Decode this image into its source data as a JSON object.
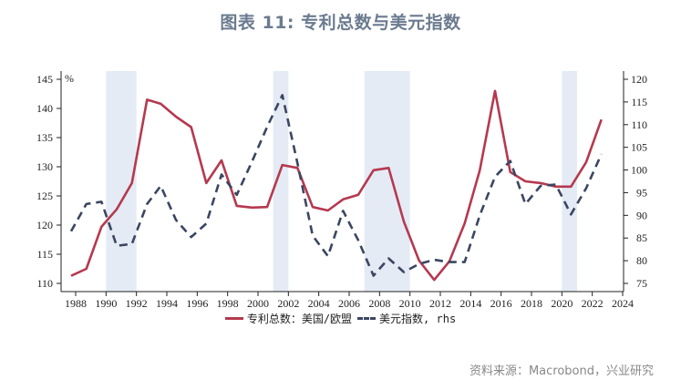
{
  "title": "图表 11: 专利总数与美元指数",
  "source": "资料来源：Macrobond，兴业研究",
  "colors": {
    "patent_line": "#b5394f",
    "usd_line": "#3b4661",
    "shade": "#e4ebf5",
    "title": "#6b7b8f"
  },
  "legend": {
    "patent": "专利总数：美国/欧盟",
    "usd": "美元指数, rhs"
  },
  "chart_data": {
    "type": "line",
    "title": "图表 11: 专利总数与美元指数",
    "xlabel": "",
    "ylabel": "%",
    "y2label": "rhs",
    "xlim": [
      1987,
      2024
    ],
    "ylim": [
      109,
      146
    ],
    "y2lim": [
      74,
      121
    ],
    "x_ticks": [
      1988,
      1990,
      1992,
      1994,
      1996,
      1998,
      2000,
      2002,
      2004,
      2006,
      2008,
      2010,
      2012,
      2014,
      2016,
      2018,
      2020,
      2022,
      2024
    ],
    "y_ticks": [
      110,
      115,
      120,
      125,
      130,
      135,
      140,
      145
    ],
    "y2_ticks": [
      75,
      80,
      85,
      90,
      95,
      100,
      105,
      110,
      115,
      120
    ],
    "legend_position": "bottom",
    "grid": false,
    "shaded_periods": [
      [
        1990.0,
        1992.0
      ],
      [
        2001.0,
        2002.0
      ],
      [
        2007.0,
        2010.0
      ],
      [
        2020.0,
        2021.0
      ]
    ],
    "series": [
      {
        "name": "专利总数：美国/欧盟",
        "axis": "left",
        "style": "solid",
        "x": [
          1987.7,
          1988.7,
          1989.7,
          1990.7,
          1991.7,
          1992.7,
          1993.6,
          1994.6,
          1995.6,
          1996.6,
          1997.6,
          1998.6,
          1999.6,
          2000.6,
          2001.6,
          2002.6,
          2003.6,
          2004.6,
          2005.6,
          2006.6,
          2007.6,
          2008.6,
          2009.6,
          2010.6,
          2011.6,
          2012.6,
          2013.6,
          2014.6,
          2015.6,
          2016.6,
          2017.6,
          2018.6,
          2019.6,
          2020.6,
          2021.6,
          2022.6
        ],
        "values": [
          111.3,
          112.5,
          119.7,
          122.7,
          127.2,
          141.5,
          140.8,
          138.6,
          136.8,
          127.2,
          131.1,
          123.3,
          123.0,
          123.1,
          130.3,
          129.8,
          123.1,
          122.5,
          124.4,
          125.2,
          129.4,
          129.8,
          120.6,
          113.9,
          110.6,
          113.8,
          120.3,
          129.4,
          143.0,
          129.1,
          127.5,
          127.2,
          126.6,
          126.6,
          130.8,
          138.1
        ]
      },
      {
        "name": "美元指数, rhs",
        "axis": "right",
        "style": "dashed",
        "x": [
          1987.7,
          1988.7,
          1989.7,
          1990.7,
          1991.7,
          1992.7,
          1993.6,
          1994.6,
          1995.6,
          1996.6,
          1997.6,
          1998.6,
          1999.6,
          2000.6,
          2001.6,
          2002.6,
          2003.6,
          2004.6,
          2005.6,
          2006.6,
          2007.6,
          2008.6,
          2009.6,
          2010.6,
          2011.6,
          2012.6,
          2013.6,
          2014.6,
          2015.6,
          2016.6,
          2017.6,
          2018.6,
          2019.6,
          2020.6,
          2021.6,
          2022.6
        ],
        "values": [
          86.5,
          92.5,
          93.0,
          83.3,
          83.7,
          92.5,
          96.5,
          89.0,
          85.2,
          88.2,
          99.0,
          94.5,
          101.8,
          109.5,
          116.5,
          101.5,
          85.5,
          81.0,
          91.0,
          84.5,
          76.7,
          80.5,
          77.5,
          79.3,
          80.2,
          79.7,
          79.7,
          90.0,
          98.5,
          102.0,
          92.5,
          96.5,
          96.8,
          90.2,
          96.0,
          103.5
        ]
      }
    ]
  }
}
